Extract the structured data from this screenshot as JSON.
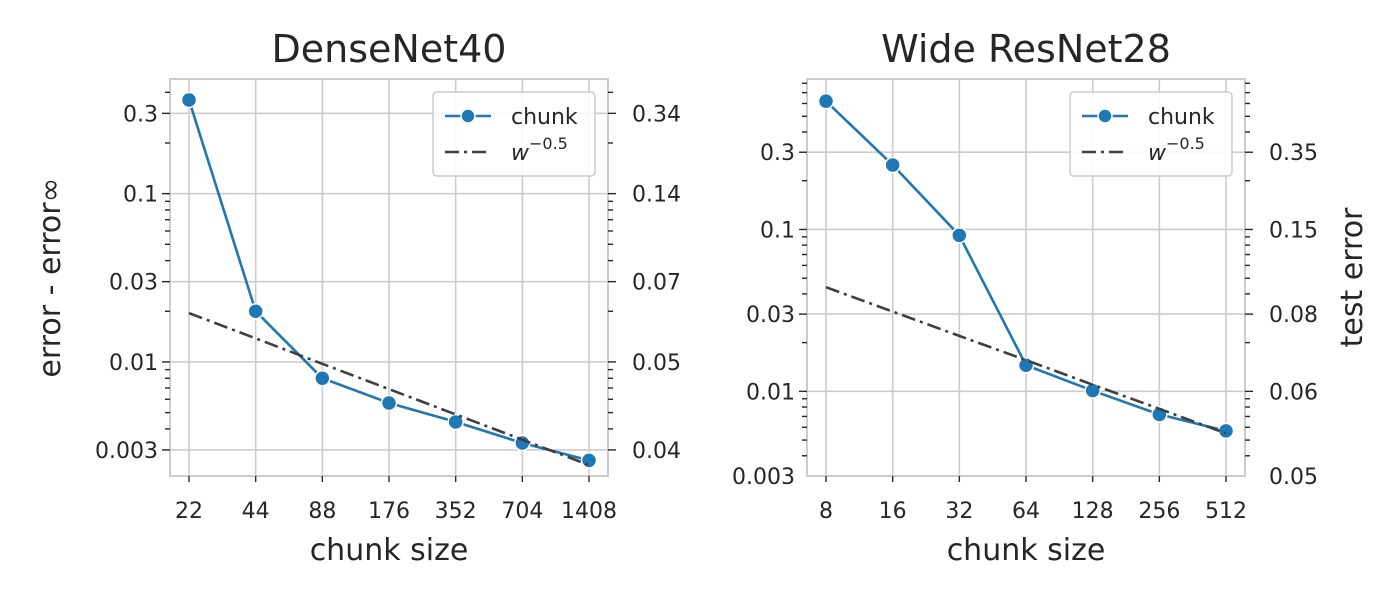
{
  "colors": {
    "chunk": "#1f77b4",
    "power_law": "#3f3f3f",
    "grid": "#cccccc",
    "frame": "#cccccc"
  },
  "chart_data": [
    {
      "type": "line",
      "title": "DenseNet40",
      "xlabel": "chunk size",
      "ylabel": "error - error∞",
      "ylabel_right": "",
      "x_scale": "log2",
      "y_scale": "log10",
      "x": [
        22,
        44,
        88,
        176,
        352,
        704,
        1408
      ],
      "x_tick_labels": [
        "22",
        "44",
        "88",
        "176",
        "352",
        "704",
        "1408"
      ],
      "y_ticks": [
        0.003,
        0.01,
        0.03,
        0.1,
        0.3
      ],
      "y_tick_labels": [
        "0.003",
        "0.01",
        "0.03",
        "0.1",
        "0.3"
      ],
      "right_y_tick_labels": [
        "0.04",
        "0.05",
        "0.07",
        "0.14",
        "0.34"
      ],
      "ylim": [
        0.0021,
        0.48
      ],
      "series": [
        {
          "name": "chunk",
          "style": "solid-marker",
          "y": [
            0.36,
            0.02,
            0.008,
            0.0057,
            0.0044,
            0.0033,
            0.0026
          ]
        },
        {
          "name": "w⁻⁰·⁵",
          "style": "dashdot",
          "y": [
            0.0195,
            0.0138,
            0.00975,
            0.0069,
            0.00488,
            0.00345,
            0.00244
          ]
        }
      ],
      "legend": {
        "position": "top-right",
        "entries": [
          {
            "label": "chunk"
          },
          {
            "base": "w",
            "sup": "−0.5"
          }
        ]
      },
      "grid": true
    },
    {
      "type": "line",
      "title": "Wide ResNet28",
      "xlabel": "chunk size",
      "ylabel": "",
      "ylabel_right": "test error",
      "x_scale": "log2",
      "y_scale": "log10",
      "x": [
        8,
        16,
        32,
        64,
        128,
        256,
        512
      ],
      "x_tick_labels": [
        "8",
        "16",
        "32",
        "64",
        "128",
        "256",
        "512"
      ],
      "y_ticks": [
        0.003,
        0.01,
        0.03,
        0.1,
        0.3
      ],
      "y_tick_labels": [
        "0.003",
        "0.01",
        "0.03",
        "0.1",
        "0.3"
      ],
      "right_y_tick_labels": [
        "0.05",
        "0.06",
        "0.08",
        "0.15",
        "0.35"
      ],
      "ylim": [
        0.003,
        0.85
      ],
      "series": [
        {
          "name": "chunk",
          "style": "solid-marker",
          "y": [
            0.62,
            0.25,
            0.092,
            0.0145,
            0.0101,
            0.0072,
            0.0057
          ]
        },
        {
          "name": "w⁻⁰·⁵",
          "style": "dashdot",
          "y": [
            0.044,
            0.0311,
            0.022,
            0.0156,
            0.011,
            0.0078,
            0.0055
          ]
        }
      ],
      "legend": {
        "position": "top-right",
        "entries": [
          {
            "label": "chunk"
          },
          {
            "base": "w",
            "sup": "−0.5"
          }
        ]
      },
      "grid": true
    }
  ]
}
